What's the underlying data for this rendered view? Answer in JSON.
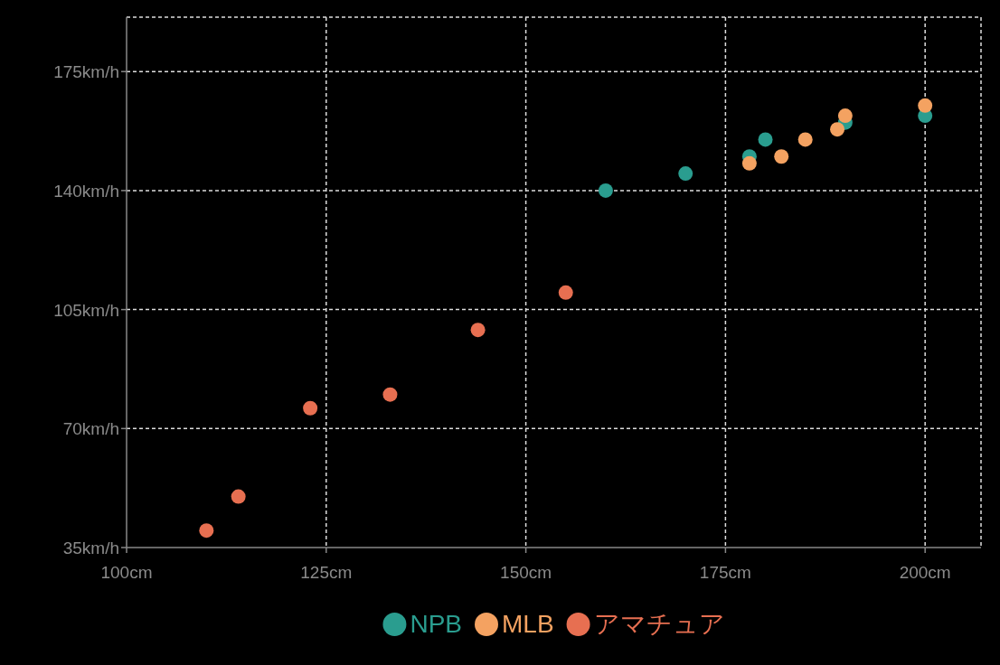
{
  "chart_data": {
    "type": "scatter",
    "marker": "circle",
    "grid": true,
    "legend": "bottom",
    "xlim": [
      100,
      207
    ],
    "ylim": [
      35,
      191
    ],
    "xticks": [
      {
        "value": 100,
        "label": "100cm"
      },
      {
        "value": 125,
        "label": "125cm"
      },
      {
        "value": 150,
        "label": "150cm"
      },
      {
        "value": 175,
        "label": "175cm"
      },
      {
        "value": 200,
        "label": "200cm"
      }
    ],
    "yticks": [
      {
        "value": 35,
        "label": "35km/h"
      },
      {
        "value": 70,
        "label": "70km/h"
      },
      {
        "value": 105,
        "label": "105km/h"
      },
      {
        "value": 140,
        "label": "140km/h"
      },
      {
        "value": 175,
        "label": "175km/h"
      }
    ],
    "series": [
      {
        "name": "NPB",
        "color": "#2a9d8f",
        "x": [
          160,
          170,
          178,
          180,
          190,
          200
        ],
        "values": [
          140,
          145,
          150,
          155,
          160,
          162
        ]
      },
      {
        "name": "MLB",
        "color": "#f4a261",
        "x": [
          178,
          182,
          185,
          189,
          190,
          200
        ],
        "values": [
          148,
          150,
          155,
          158,
          162,
          165
        ]
      },
      {
        "name": "アマチュア",
        "color": "#e76f51",
        "x": [
          110,
          114,
          123,
          133,
          144,
          155
        ],
        "values": [
          40,
          50,
          76,
          80,
          99,
          110
        ]
      }
    ]
  }
}
